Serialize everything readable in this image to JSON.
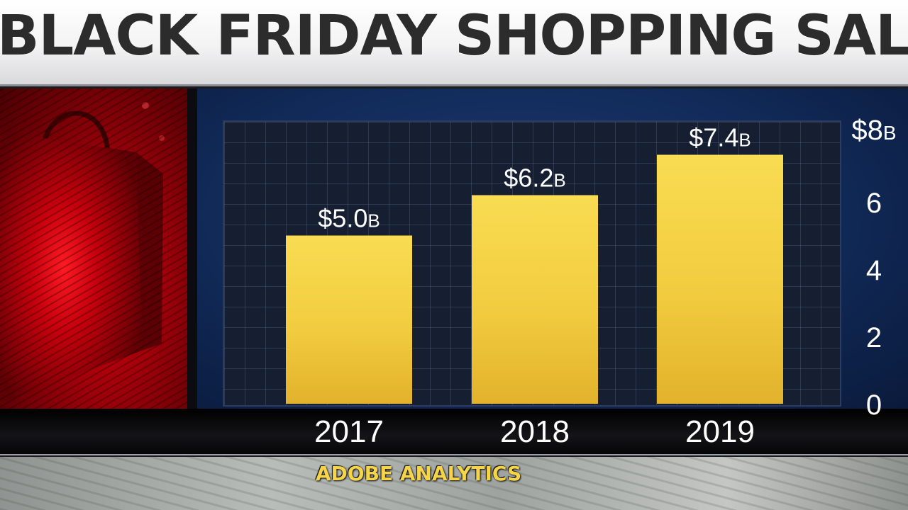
{
  "title": "BLACK FRIDAY SHOPPING SALES",
  "source": "ADOBE ANALYTICS",
  "chart_data": {
    "type": "bar",
    "categories": [
      "2017",
      "2018",
      "2019"
    ],
    "values": [
      5.0,
      6.2,
      7.4
    ],
    "data_labels": [
      {
        "value": "$5.0",
        "suffix": "B"
      },
      {
        "value": "$6.2",
        "suffix": "B"
      },
      {
        "value": "$7.4",
        "suffix": "B"
      }
    ],
    "y_ticks": [
      {
        "value": 0,
        "label": "0"
      },
      {
        "value": 2,
        "label": "2"
      },
      {
        "value": 4,
        "label": "4"
      },
      {
        "value": 6,
        "label": "6"
      },
      {
        "value": 8,
        "label": "$8",
        "suffix": "B"
      }
    ],
    "ylim": [
      0,
      8
    ],
    "y_axis_side": "right",
    "bar_color": "#f2cc3f",
    "grid": true
  },
  "colors": {
    "title": "#2c2c2c",
    "source": "#f5d44a",
    "chart_background": "#112a58",
    "left_panel": "#a8000a"
  },
  "icons": {
    "left_panel": "shopping-bag-icon"
  }
}
